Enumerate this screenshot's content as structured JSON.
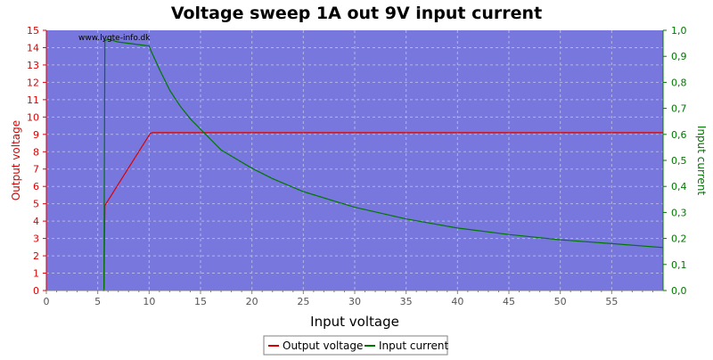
{
  "chart_data": {
    "type": "line",
    "title": "Voltage sweep 1A out 9V input current",
    "xlabel": "Input voltage",
    "ylabel_left": "Output voltage",
    "ylabel_right": "Input current",
    "watermark": "www.lygte-info.dk",
    "xlim": [
      0,
      60
    ],
    "ylim_left": [
      0,
      15
    ],
    "ylim_right": [
      0,
      1.0
    ],
    "x_ticks": [
      "0",
      "5",
      "10",
      "15",
      "20",
      "25",
      "30",
      "35",
      "40",
      "45",
      "50",
      "55"
    ],
    "y_left_ticks": [
      "0",
      "1",
      "2",
      "3",
      "4",
      "5",
      "6",
      "7",
      "8",
      "9",
      "10",
      "11",
      "12",
      "13",
      "14",
      "15"
    ],
    "y_right_ticks": [
      "0,0",
      "0,1",
      "0,2",
      "0,3",
      "0,4",
      "0,5",
      "0,6",
      "0,7",
      "0,8",
      "0,9",
      "1,0"
    ],
    "grid": true,
    "legend_position": "bottom-center",
    "colors": {
      "plot_background": "#7777dd",
      "grid": "#b4b4ee",
      "output_voltage": "#dd0000",
      "input_current": "#007700",
      "left_axis": "#dd0000",
      "right_axis": "#007700"
    },
    "series": [
      {
        "name": "Output voltage",
        "axis": "left",
        "x": [
          5.5,
          5.6,
          5.7,
          10.1,
          10.3,
          20,
          30,
          40,
          50,
          60
        ],
        "y": [
          0,
          0,
          4.9,
          9.05,
          9.1,
          9.1,
          9.1,
          9.1,
          9.1,
          9.1
        ]
      },
      {
        "name": "Input current",
        "axis": "right",
        "x": [
          5.5,
          5.6,
          5.7,
          6,
          7,
          8,
          9,
          10,
          10.2,
          11,
          12,
          13,
          14,
          15,
          17,
          20,
          22,
          25,
          30,
          35,
          40,
          45,
          50,
          55,
          60
        ],
        "y": [
          0,
          0,
          0.96,
          0.965,
          0.955,
          0.95,
          0.945,
          0.94,
          0.92,
          0.85,
          0.77,
          0.71,
          0.66,
          0.62,
          0.54,
          0.47,
          0.43,
          0.38,
          0.32,
          0.275,
          0.24,
          0.215,
          0.195,
          0.18,
          0.165
        ]
      }
    ]
  }
}
